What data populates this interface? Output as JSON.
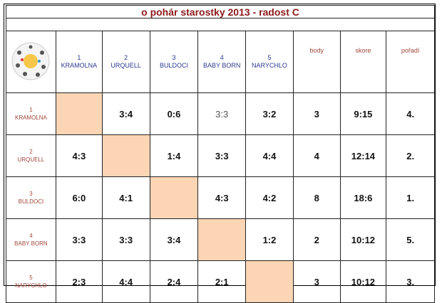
{
  "header": {
    "title": "o pohár starostky 2013 - radost C"
  },
  "columns": {
    "teams": [
      {
        "number": 1,
        "name": "KRAMOLNA"
      },
      {
        "number": 2,
        "name": "URQUELL"
      },
      {
        "number": 3,
        "name": "BULDOCI"
      },
      {
        "number": 4,
        "name": "BABY BORN"
      },
      {
        "number": 5,
        "name": "NARYCHLO"
      }
    ],
    "body": "body",
    "skore": "skore",
    "poradi": "pořadí"
  },
  "rows": [
    {
      "number": 1,
      "name": "KRAMOLNA",
      "results": [
        null,
        "3:4",
        "0:6",
        "3:3",
        "3:2"
      ],
      "body": 3,
      "skore": "9:15",
      "poradi": "4."
    },
    {
      "number": 2,
      "name": "URQUELL",
      "results": [
        "4:3",
        null,
        "1:4",
        "3:3",
        "4:4"
      ],
      "body": 4,
      "skore": "12:14",
      "poradi": "2."
    },
    {
      "number": 3,
      "name": "BULDOCI",
      "results": [
        "6:0",
        "4:1",
        null,
        "4:3",
        "4:2"
      ],
      "body": 8,
      "skore": "18:6",
      "poradi": "1."
    },
    {
      "number": 4,
      "name": "BABY BORN",
      "results": [
        "3:3",
        "3:3",
        "3:4",
        null,
        "1:2"
      ],
      "body": 2,
      "skore": "10:12",
      "poradi": "5."
    },
    {
      "number": 5,
      "name": "NARYCHLO",
      "results": [
        "2:3",
        "4:4",
        "2:4",
        "2:1",
        null
      ],
      "body": 3,
      "skore": "10:12",
      "poradi": "3."
    }
  ]
}
